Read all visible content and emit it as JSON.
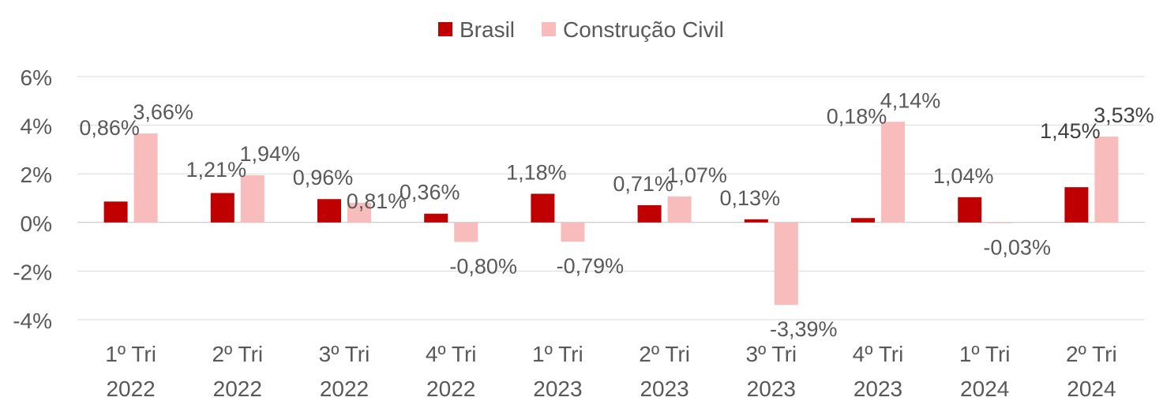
{
  "chart_data": {
    "type": "bar",
    "title": "",
    "xlabel": "",
    "ylabel": "",
    "categories": [
      [
        "1º Tri",
        "2022"
      ],
      [
        "2º Tri",
        "2022"
      ],
      [
        "3º Tri",
        "2022"
      ],
      [
        "4º Tri",
        "2022"
      ],
      [
        "1º Tri",
        "2023"
      ],
      [
        "2º Tri",
        "2023"
      ],
      [
        "3º Tri",
        "2023"
      ],
      [
        "4º Tri",
        "2023"
      ],
      [
        "1º Tri",
        "2024"
      ],
      [
        "2º Tri",
        "2024"
      ]
    ],
    "series": [
      {
        "name": "Brasil",
        "color": "#c00000",
        "values": [
          0.86,
          1.21,
          0.96,
          0.36,
          1.18,
          0.71,
          0.13,
          0.18,
          1.04,
          1.45
        ],
        "labels": [
          "0,86%",
          "1,21%",
          "0,96%",
          "0,36%",
          "1,18%",
          "0,71%",
          "0,13%",
          "0,18%",
          "1,04%",
          "1,45%"
        ]
      },
      {
        "name": "Construção Civil",
        "color": "#f8bcbc",
        "values": [
          3.66,
          1.94,
          0.81,
          -0.8,
          -0.79,
          1.07,
          -3.39,
          4.14,
          -0.03,
          3.53
        ],
        "labels": [
          "3,66%",
          "1,94%",
          "0,81%",
          "-0,80%",
          "-0,79%",
          "1,07%",
          "-3,39%",
          "4,14%",
          "-0,03%",
          "3,53%"
        ]
      }
    ],
    "ylim": [
      -4,
      6
    ],
    "yticks": [
      6,
      4,
      2,
      0,
      -2,
      -4
    ],
    "ytick_labels": [
      "6%",
      "4%",
      "2%",
      "0%",
      "-2%",
      "-4%"
    ],
    "grid": true,
    "legend_position": "top-center"
  }
}
